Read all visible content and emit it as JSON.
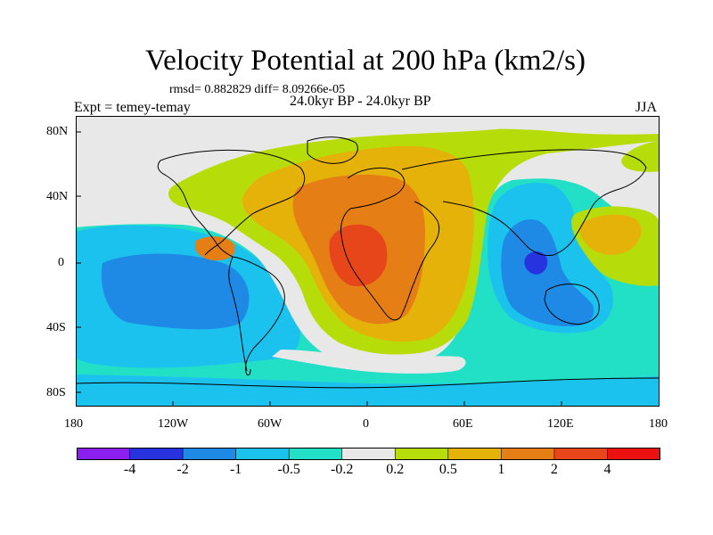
{
  "title": "Velocity Potential at 200 hPa (km2/s)",
  "stats_line": "rmsd= 0.882829 diff= 8.09266e-05",
  "period": "24.0kyr BP - 24.0kyr BP",
  "experiment": "Expt = temey-temay",
  "season": "JJA",
  "lat_labels": [
    "80N",
    "40N",
    "0",
    "40S",
    "80S"
  ],
  "lon_labels": [
    "180",
    "120W",
    "60W",
    "0",
    "60E",
    "120E",
    "180"
  ],
  "colorbar": {
    "labels": [
      "-4",
      "-2",
      "-1",
      "-0.5",
      "-0.2",
      "0.2",
      "0.5",
      "1",
      "2",
      "4"
    ],
    "colors": [
      "#8a1ff0",
      "#2833e0",
      "#1e8ae6",
      "#1cc2ee",
      "#22e0c6",
      "#e8e8e8",
      "#b6dd0a",
      "#e4b208",
      "#e57e14",
      "#e6461a",
      "#ec1010"
    ]
  },
  "colors": {
    "zero_band": "#e8e8e8",
    "weak_pos": "#b6dd0a",
    "mod_pos": "#e4b208",
    "strong_pos": "#e57e14",
    "max_pos": "#e6461a",
    "weak_neg": "#22e0c6",
    "mod_neg": "#1cc2ee",
    "strong_neg": "#1e8ae6",
    "max_neg": "#2833e0"
  }
}
